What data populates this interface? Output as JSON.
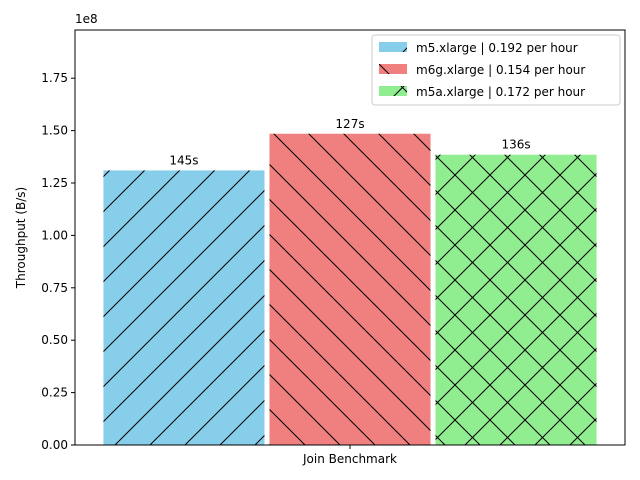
{
  "chart_data": {
    "type": "bar",
    "title": "",
    "xlabel": "",
    "ylabel": "Throughput (B/s)",
    "categories": [
      "Join Benchmark"
    ],
    "y_scale_label": "1e8",
    "y_tick_values": [
      0,
      0.25,
      0.5,
      0.75,
      1.0,
      1.25,
      1.5,
      1.75
    ],
    "y_tick_labels": [
      "0.00",
      "0.25",
      "0.50",
      "0.75",
      "1.00",
      "1.25",
      "1.50",
      "1.75"
    ],
    "ylim": [
      0,
      1.98
    ],
    "grid": false,
    "legend_position": "top-right",
    "series": [
      {
        "name": "m5.xlarge | 0.192 per hour",
        "values": [
          1.31
        ],
        "data_label": "145s",
        "color": "#87CEEB",
        "hatch": "/"
      },
      {
        "name": "m6g.xlarge | 0.154 per hour",
        "values": [
          1.485
        ],
        "data_label": "127s",
        "color": "#F08080",
        "hatch": "\\"
      },
      {
        "name": "m5a.xlarge | 0.172 per hour",
        "values": [
          1.385
        ],
        "data_label": "136s",
        "color": "#90EE90",
        "hatch": "x"
      }
    ]
  }
}
